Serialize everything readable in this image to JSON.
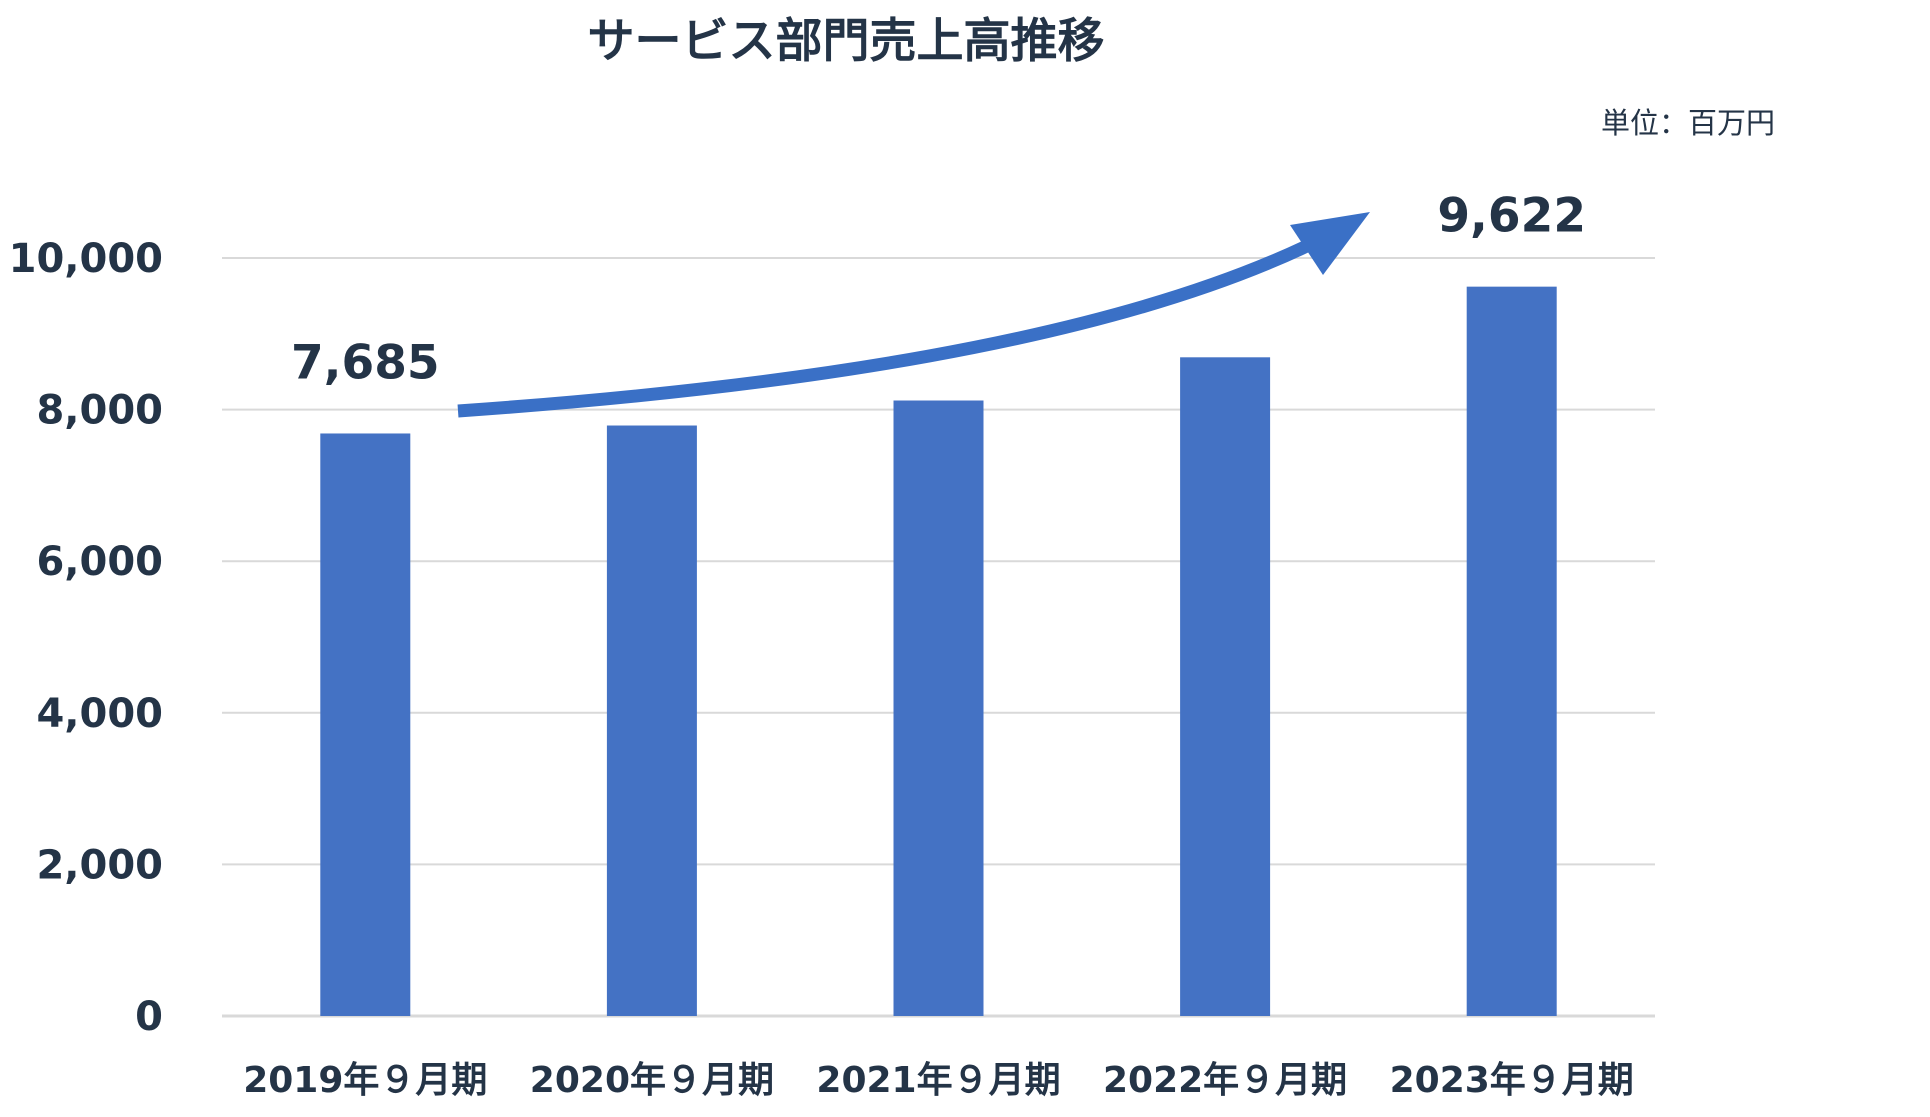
{
  "title": "サービス部門売上高推移",
  "unit_label": "単位：百万円",
  "colors": {
    "bar": "#4472c4",
    "arrow": "#3a70c6",
    "text": "#243447",
    "grid": "#d9d9d9"
  },
  "chart_data": {
    "type": "bar",
    "categories": [
      "2019年９月期",
      "2020年９月期",
      "2021年９月期",
      "2022年９月期",
      "2023年９月期"
    ],
    "values": [
      7685,
      7790,
      8120,
      8690,
      9622
    ],
    "ylim": [
      0,
      10000
    ],
    "yticks": [
      0,
      2000,
      4000,
      6000,
      8000,
      10000
    ],
    "ytick_labels": [
      "0",
      "2,000",
      "4,000",
      "6,000",
      "8,000",
      "10,000"
    ],
    "grid": true,
    "data_labels": [
      {
        "category_index": 0,
        "text": "7,685"
      },
      {
        "category_index": 4,
        "text": "9,622"
      }
    ],
    "annotation": "upward trend arrow",
    "xlabel": "",
    "ylabel": ""
  }
}
